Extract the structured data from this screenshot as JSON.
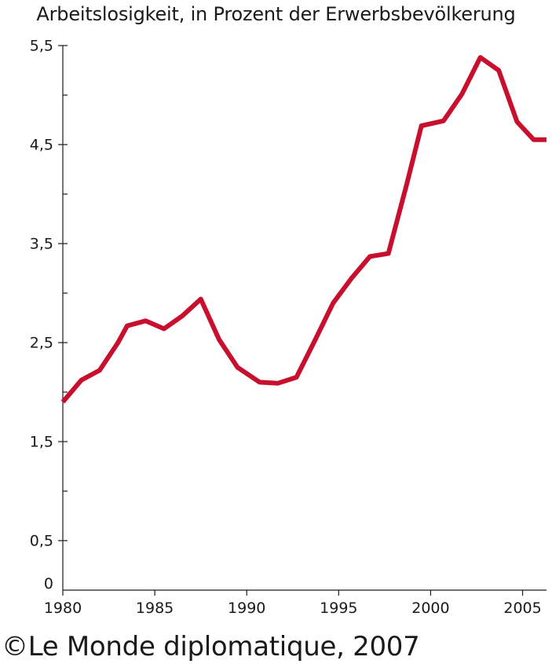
{
  "chart_data": {
    "type": "line",
    "title": "Arbeitslosigkeit, in Prozent der Erwerbsbevölkerung",
    "xlabel": "",
    "ylabel": "",
    "xlim": [
      1980,
      2006.3
    ],
    "ylim": [
      0,
      5.5
    ],
    "x_ticks": [
      1980,
      1985,
      1990,
      1995,
      2000,
      2005
    ],
    "y_ticks": [
      0,
      0.5,
      1.5,
      2.5,
      3.5,
      4.5,
      5.5
    ],
    "y_tick_labels": [
      "0",
      "0,5",
      "1,5",
      "2,5",
      "3,5",
      "4,5",
      "5,5"
    ],
    "minor_y_ticks": [
      1,
      2,
      3,
      4,
      5
    ],
    "grid": false,
    "line_color": "#c8102e",
    "series": [
      {
        "x": [
          1980,
          1981,
          1982,
          1983,
          1983.5,
          1984.5,
          1985.5,
          1986.5,
          1987.5,
          1988.5,
          1989.5,
          1990.7,
          1991.7,
          1992.7,
          1993.7,
          1994.7,
          1995.7,
          1996.7,
          1997.7,
          1998.7,
          1999.5,
          2000.7,
          2001.7,
          2002.7,
          2003.7,
          2004.7,
          2005.6,
          2006.3
        ],
        "y": [
          1.9,
          2.12,
          2.22,
          2.5,
          2.67,
          2.72,
          2.64,
          2.77,
          2.94,
          2.53,
          2.25,
          2.1,
          2.09,
          2.15,
          2.52,
          2.9,
          3.15,
          3.37,
          3.4,
          4.1,
          4.69,
          4.74,
          5.01,
          5.38,
          5.25,
          4.73,
          4.55,
          4.55
        ]
      }
    ]
  },
  "footer": {
    "credit": "©Le Monde diplomatique, 2007"
  }
}
